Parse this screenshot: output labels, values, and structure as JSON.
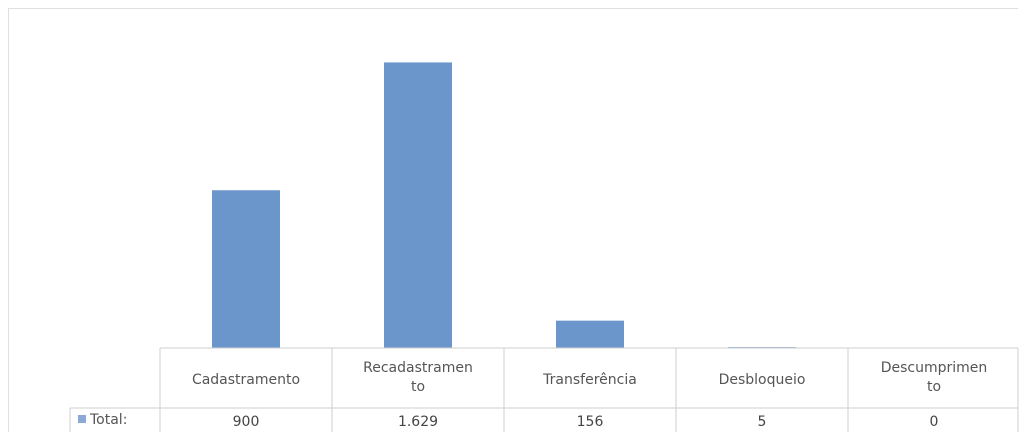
{
  "chart_data": {
    "type": "bar",
    "categories": [
      "Cadastramento",
      "Recadastramento",
      "Transferência",
      "Desbloqueio",
      "Descumprimento"
    ],
    "category_label_lines": [
      [
        "Cadastramento"
      ],
      [
        "Recadastramen",
        "to"
      ],
      [
        "Transferência"
      ],
      [
        "Desbloqueio"
      ],
      [
        "Descumprimen",
        "to"
      ]
    ],
    "series": [
      {
        "name": "Total:",
        "values": [
          900,
          1629,
          156,
          5,
          0
        ],
        "value_labels": [
          "900",
          "1.629",
          "156",
          "5",
          "0"
        ]
      }
    ],
    "ylim": [
      0,
      1700
    ],
    "grid": false,
    "legend_position": "data-table",
    "bar_color": "#6b96cc",
    "legend_key_color": "#8aa9d6"
  }
}
